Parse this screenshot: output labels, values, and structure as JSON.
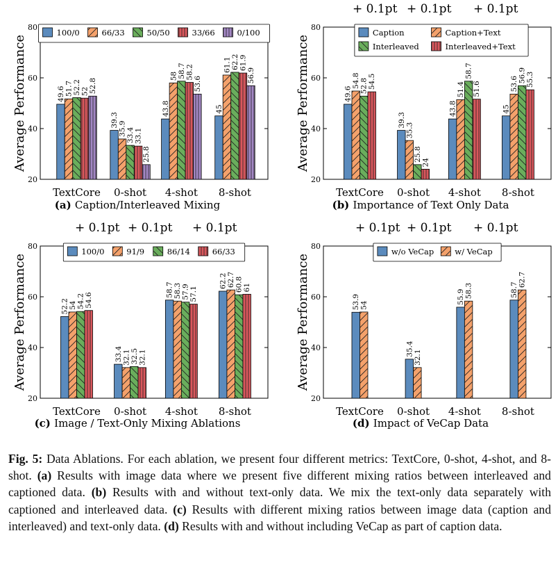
{
  "colors": {
    "blue": "#5b8bbd",
    "orange": "#f4a16b",
    "green": "#6aae5c",
    "red": "#d9575c",
    "purple": "#a387c4",
    "axis": "#000000"
  },
  "chart_data": [
    {
      "type": "bar",
      "panel_label": "(a)",
      "subtitle": "Caption/Interleaved Mixing",
      "ylabel": "Average Performance",
      "ylim": [
        20,
        80
      ],
      "yticks": [
        20,
        40,
        60,
        80
      ],
      "categories": [
        "TextCore",
        "0-shot",
        "4-shot",
        "8-shot"
      ],
      "top_annotations": [],
      "legend_position": "top",
      "series": [
        {
          "name": "100/0",
          "color": "#5b8bbd",
          "hatch": "none",
          "values": [
            49.6,
            39.3,
            43.8,
            45
          ]
        },
        {
          "name": "66/33",
          "color": "#f4a16b",
          "hatch": "diag",
          "values": [
            51.7,
            35.9,
            58,
            61.1
          ]
        },
        {
          "name": "50/50",
          "color": "#6aae5c",
          "hatch": "back",
          "values": [
            52.2,
            33.4,
            58.7,
            62.2
          ]
        },
        {
          "name": "33/66",
          "color": "#d9575c",
          "hatch": "vert",
          "values": [
            52,
            33.1,
            58.2,
            61.9
          ]
        },
        {
          "name": "0/100",
          "color": "#a387c4",
          "hatch": "vert",
          "values": [
            52.8,
            25.8,
            53.6,
            56.9
          ]
        }
      ]
    },
    {
      "type": "bar",
      "panel_label": "(b)",
      "subtitle": "Importance of Text Only Data",
      "ylabel": "Average Performance",
      "ylim": [
        20,
        80
      ],
      "yticks": [
        20,
        40,
        60,
        80
      ],
      "categories": [
        "TextCore",
        "0-shot",
        "4-shot",
        "8-shot"
      ],
      "top_annotations": [
        "+ 0.1pt",
        "+ 0.1pt",
        "+ 0.1pt"
      ],
      "legend_position": "top",
      "series": [
        {
          "name": "Caption",
          "color": "#5b8bbd",
          "hatch": "none",
          "values": [
            49.6,
            39.3,
            43.8,
            45
          ]
        },
        {
          "name": "Caption+Text",
          "color": "#f4a16b",
          "hatch": "diag",
          "values": [
            54.8,
            35.3,
            51.4,
            53.6
          ]
        },
        {
          "name": "Interleaved",
          "color": "#6aae5c",
          "hatch": "back",
          "values": [
            52.8,
            25.8,
            58.7,
            56.9
          ]
        },
        {
          "name": "Interleaved+Text",
          "color": "#d9575c",
          "hatch": "vert",
          "values": [
            54.5,
            24,
            51.6,
            55.3
          ]
        }
      ]
    },
    {
      "type": "bar",
      "panel_label": "(c)",
      "subtitle": "Image / Text-Only Mixing Ablations",
      "ylabel": "Average Performance",
      "ylim": [
        20,
        80
      ],
      "yticks": [
        20,
        40,
        60,
        80
      ],
      "categories": [
        "TextCore",
        "0-shot",
        "4-shot",
        "8-shot"
      ],
      "top_annotations": [
        "+ 0.1pt",
        "+ 0.1pt",
        "+ 0.1pt"
      ],
      "legend_position": "top",
      "series": [
        {
          "name": "100/0",
          "color": "#5b8bbd",
          "hatch": "none",
          "values": [
            52.2,
            33.4,
            58.7,
            62.2
          ]
        },
        {
          "name": "91/9",
          "color": "#f4a16b",
          "hatch": "diag",
          "values": [
            54,
            32.1,
            58.3,
            62.7
          ]
        },
        {
          "name": "86/14",
          "color": "#6aae5c",
          "hatch": "back",
          "values": [
            54.2,
            32.5,
            57.9,
            60.8
          ]
        },
        {
          "name": "66/33",
          "color": "#d9575c",
          "hatch": "vert",
          "values": [
            54.6,
            32.1,
            57.1,
            61
          ]
        }
      ]
    },
    {
      "type": "bar",
      "panel_label": "(d)",
      "subtitle": "Impact of VeCap Data",
      "ylabel": "Average Performance",
      "ylim": [
        20,
        80
      ],
      "yticks": [
        20,
        40,
        60,
        80
      ],
      "categories": [
        "TextCore",
        "0-shot",
        "4-shot",
        "8-shot"
      ],
      "top_annotations": [
        "+ 0.1pt",
        "+ 0.1pt",
        "+ 0.1pt"
      ],
      "legend_position": "top",
      "series": [
        {
          "name": "w/o VeCap",
          "color": "#5b8bbd",
          "hatch": "none",
          "values": [
            53.9,
            35.4,
            55.9,
            58.7
          ]
        },
        {
          "name": "w/ VeCap",
          "color": "#f4a16b",
          "hatch": "diag",
          "values": [
            54,
            32.1,
            58.3,
            62.7
          ]
        }
      ]
    }
  ],
  "caption": {
    "fig_label": "Fig. 5:",
    "intro": " Data Ablations. For each ablation, we present four different metrics: TextCore, 0-shot, 4-shot, and 8-shot. ",
    "a_label": "(a)",
    "a_text": " Results with image data where we present five different mixing ratios between interleaved and captioned data. ",
    "b_label": "(b)",
    "b_text": " Results with and without text-only data. We mix the text-only data separately with captioned and interleaved data. ",
    "c_label": "(c)",
    "c_text": " Results with different mixing ratios between image data (caption and interleaved) and text-only data. ",
    "d_label": "(d)",
    "d_text": " Results with and without including VeCap as part of caption data."
  }
}
